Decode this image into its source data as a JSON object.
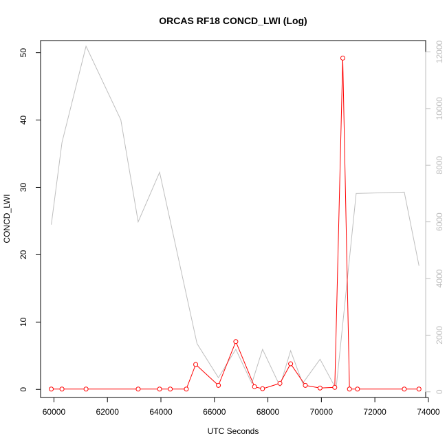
{
  "chart_data": {
    "type": "line",
    "title": "ORCAS RF18 CONCD_LWI (Log)",
    "xlabel": "UTC Seconds",
    "ylabel": "CONCD_LWI",
    "xlim": [
      59500,
      73900
    ],
    "ylim": [
      -1.2,
      51.8
    ],
    "y2lim": [
      -200,
      12400
    ],
    "x_ticks": [
      60000,
      62000,
      64000,
      66000,
      68000,
      70000,
      72000,
      74000
    ],
    "y_ticks": [
      0,
      10,
      20,
      30,
      40,
      50
    ],
    "y2_ticks": [
      0,
      2000,
      4000,
      6000,
      8000,
      10000,
      12000
    ],
    "grid": false,
    "series": [
      {
        "axis": "left",
        "color": "#ff0000",
        "marker": "circle",
        "points": [
          [
            59900,
            0.05
          ],
          [
            60300,
            0.05
          ],
          [
            61200,
            0.05
          ],
          [
            63150,
            0.05
          ],
          [
            63950,
            0.05
          ],
          [
            64350,
            0.05
          ],
          [
            64950,
            0.05
          ],
          [
            65300,
            3.7
          ],
          [
            66150,
            0.6
          ],
          [
            66800,
            7.1
          ],
          [
            67500,
            0.4
          ],
          [
            67800,
            0.1
          ],
          [
            68450,
            0.9
          ],
          [
            68850,
            3.8
          ],
          [
            69400,
            0.6
          ],
          [
            69950,
            0.2
          ],
          [
            70500,
            0.3
          ],
          [
            70800,
            49.2
          ],
          [
            71050,
            0.05
          ],
          [
            71350,
            0.05
          ],
          [
            73100,
            0.05
          ],
          [
            73650,
            0.05
          ]
        ]
      },
      {
        "axis": "right",
        "color": "#bebebe",
        "marker": "none",
        "points": [
          [
            59900,
            5900
          ],
          [
            60300,
            8800
          ],
          [
            61200,
            12200
          ],
          [
            62500,
            9600
          ],
          [
            63150,
            6000
          ],
          [
            63950,
            7750
          ],
          [
            65350,
            1700
          ],
          [
            66150,
            500
          ],
          [
            66800,
            1500
          ],
          [
            67400,
            300
          ],
          [
            67800,
            1500
          ],
          [
            68450,
            200
          ],
          [
            68850,
            1450
          ],
          [
            69300,
            300
          ],
          [
            69950,
            1150
          ],
          [
            70550,
            100
          ],
          [
            71300,
            7000
          ],
          [
            73100,
            7050
          ],
          [
            73650,
            4450
          ]
        ]
      }
    ]
  }
}
